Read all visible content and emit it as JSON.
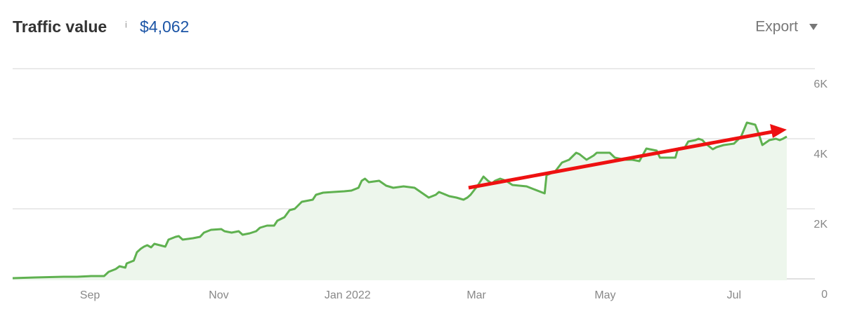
{
  "chart_data": {
    "type": "area",
    "title": "Traffic value",
    "info_icon": "i",
    "headline_value": "$4,062",
    "export_label": "Export",
    "color": "#5fb150",
    "fill_color": "#edf6ec",
    "grid": true,
    "x": [
      -5.2,
      -4.85,
      -4.41,
      -4.2,
      -3.98,
      -3.78,
      -3.71,
      -3.6,
      -3.54,
      -3.45,
      -3.43,
      -3.32,
      -3.27,
      -3.21,
      -3.16,
      -3.11,
      -3.05,
      -3.0,
      -2.83,
      -2.78,
      -2.67,
      -2.62,
      -2.56,
      -2.4,
      -2.29,
      -2.23,
      -2.12,
      -1.96,
      -1.91,
      -1.8,
      -1.69,
      -1.63,
      -1.52,
      -1.42,
      -1.36,
      -1.25,
      -1.14,
      -1.09,
      -0.98,
      -0.9,
      -0.82,
      -0.71,
      -0.54,
      -0.49,
      -0.38,
      -0.22,
      -0.05,
      0.06,
      0.17,
      0.22,
      0.27,
      0.33,
      0.49,
      0.6,
      0.71,
      0.87,
      1.04,
      1.15,
      1.26,
      1.37,
      1.42,
      1.58,
      1.69,
      1.8,
      1.86,
      1.91,
      2.02,
      2.11,
      2.18,
      2.24,
      2.29,
      2.37,
      2.46,
      2.56,
      2.78,
      2.89,
      3.06,
      3.09,
      3.22,
      3.33,
      3.44,
      3.55,
      3.6,
      3.71,
      3.82,
      3.87,
      4.07,
      4.15,
      4.31,
      4.42,
      4.53,
      4.64,
      4.8,
      4.85,
      5.09,
      5.13,
      5.24,
      5.29,
      5.4,
      5.45,
      5.51,
      5.56,
      5.67,
      5.73,
      5.84,
      6.0,
      6.11,
      6.2,
      6.33,
      6.38,
      6.44,
      6.55,
      6.65,
      6.71,
      6.76,
      6.82
    ],
    "values": [
      60,
      80,
      100,
      100,
      120,
      120,
      240,
      320,
      400,
      360,
      480,
      560,
      800,
      900,
      960,
      1000,
      940,
      1040,
      960,
      1160,
      1240,
      1260,
      1160,
      1200,
      1240,
      1360,
      1440,
      1460,
      1400,
      1360,
      1400,
      1300,
      1340,
      1400,
      1500,
      1560,
      1560,
      1700,
      1800,
      2000,
      2040,
      2240,
      2300,
      2440,
      2500,
      2520,
      2540,
      2560,
      2640,
      2840,
      2900,
      2800,
      2840,
      2700,
      2640,
      2680,
      2640,
      2500,
      2360,
      2440,
      2520,
      2400,
      2360,
      2300,
      2360,
      2440,
      2700,
      2960,
      2840,
      2760,
      2840,
      2900,
      2840,
      2720,
      2680,
      2600,
      2480,
      3000,
      3100,
      3360,
      3440,
      3640,
      3600,
      3440,
      3560,
      3640,
      3640,
      3500,
      3440,
      3440,
      3400,
      3760,
      3700,
      3500,
      3500,
      3760,
      3800,
      3960,
      4000,
      4040,
      4000,
      3900,
      3740,
      3800,
      3860,
      3900,
      4100,
      4500,
      4440,
      4200,
      3860,
      4000,
      4040,
      4000,
      4040,
      4100
    ],
    "xlim": [
      -5.2,
      6.82
    ],
    "xticks": [
      {
        "value": -4,
        "label": "Sep"
      },
      {
        "value": -2,
        "label": "Nov"
      },
      {
        "value": 0,
        "label": "Jan 2022"
      },
      {
        "value": 2,
        "label": "Mar"
      },
      {
        "value": 4,
        "label": "May"
      },
      {
        "value": 6,
        "label": "Jul"
      }
    ],
    "ylim": [
      0,
      6000
    ],
    "yticks": [
      0,
      {
        "value": 2000,
        "label": "2K"
      },
      {
        "value": 4000,
        "label": "4K"
      },
      {
        "value": 6000,
        "label": "6K"
      }
    ]
  }
}
